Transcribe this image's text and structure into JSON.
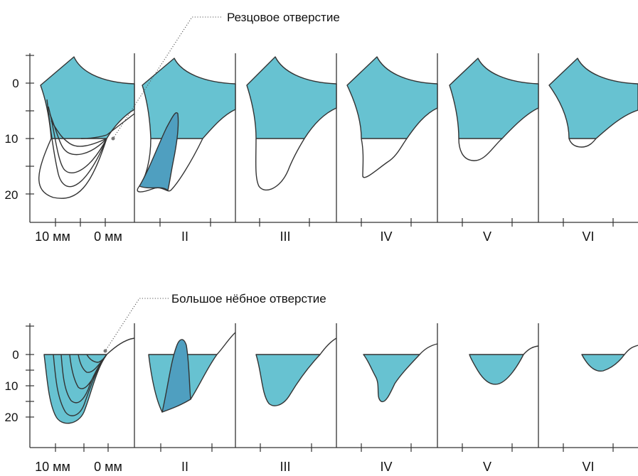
{
  "callouts": {
    "top": "Резцовое отверстие",
    "bottom": "Большое нёбное отверстие"
  },
  "top_panel": {
    "y_ticks": [
      "0",
      "10",
      "20"
    ],
    "x_labels": [
      "10 мм",
      "0 мм",
      "II",
      "III",
      "IV",
      "V",
      "VI"
    ]
  },
  "bottom_panel": {
    "y_ticks": [
      "0",
      "10",
      "20"
    ],
    "x_labels": [
      "10 мм",
      "0 мм",
      "II",
      "III",
      "IV",
      "V",
      "VI"
    ]
  },
  "colors": {
    "fill": "#67C2D1",
    "fill_dark": "#4F9FC0",
    "line": "#333333"
  }
}
